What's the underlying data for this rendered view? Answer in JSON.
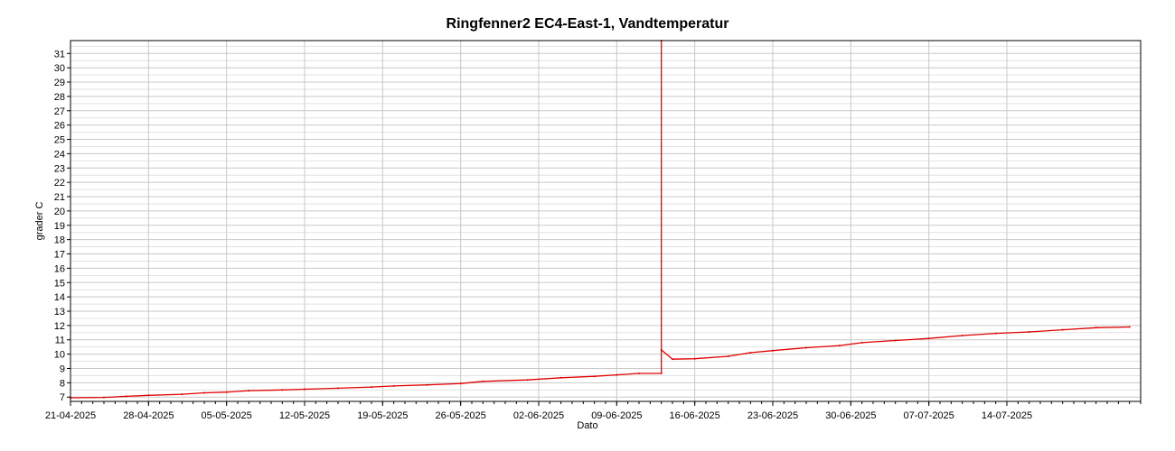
{
  "chart_data": {
    "type": "line",
    "title": "Ringfenner2 EC4-East-1, Vandtemperatur",
    "xlabel": "Dato",
    "ylabel": "grader C",
    "x_ticks": [
      "21-04-2025",
      "28-04-2025",
      "05-05-2025",
      "12-05-2025",
      "19-05-2025",
      "26-05-2025",
      "02-06-2025",
      "09-06-2025",
      "16-06-2025",
      "23-06-2025",
      "30-06-2025",
      "07-07-2025",
      "14-07-2025"
    ],
    "y_ticks": [
      7,
      8,
      9,
      10,
      11,
      12,
      13,
      14,
      15,
      16,
      17,
      18,
      19,
      20,
      21,
      22,
      23,
      24,
      25,
      26,
      27,
      28,
      29,
      30,
      31
    ],
    "xlim": [
      "2025-04-21",
      "2025-07-26"
    ],
    "ylim": [
      6.7,
      31.9
    ],
    "grid": true,
    "line_color": "#e00000",
    "series": [
      {
        "points": [
          [
            "2025-04-21",
            6.95
          ],
          [
            "2025-04-24",
            6.98
          ],
          [
            "2025-04-26",
            7.05
          ],
          [
            "2025-04-28",
            7.12
          ],
          [
            "2025-05-01",
            7.2
          ],
          [
            "2025-05-03",
            7.3
          ],
          [
            "2025-05-05",
            7.35
          ],
          [
            "2025-05-07",
            7.45
          ],
          [
            "2025-05-10",
            7.5
          ],
          [
            "2025-05-12",
            7.55
          ],
          [
            "2025-05-15",
            7.62
          ],
          [
            "2025-05-18",
            7.7
          ],
          [
            "2025-05-20",
            7.78
          ],
          [
            "2025-05-23",
            7.85
          ],
          [
            "2025-05-26",
            7.95
          ],
          [
            "2025-05-28",
            8.1
          ],
          [
            "2025-06-01",
            8.2
          ],
          [
            "2025-06-04",
            8.35
          ],
          [
            "2025-06-07",
            8.45
          ],
          [
            "2025-06-09",
            8.55
          ],
          [
            "2025-06-11",
            8.65
          ],
          [
            "2025-06-13",
            8.65
          ],
          [
            "2025-06-13",
            31.9
          ],
          [
            "2025-06-13",
            10.3
          ],
          [
            "2025-06-14",
            9.65
          ],
          [
            "2025-06-16",
            9.68
          ],
          [
            "2025-06-19",
            9.85
          ],
          [
            "2025-06-21",
            10.1
          ],
          [
            "2025-06-23",
            10.25
          ],
          [
            "2025-06-26",
            10.45
          ],
          [
            "2025-06-29",
            10.6
          ],
          [
            "2025-07-01",
            10.8
          ],
          [
            "2025-07-04",
            10.95
          ],
          [
            "2025-07-07",
            11.1
          ],
          [
            "2025-07-10",
            11.3
          ],
          [
            "2025-07-13",
            11.45
          ],
          [
            "2025-07-16",
            11.55
          ],
          [
            "2025-07-19",
            11.7
          ],
          [
            "2025-07-22",
            11.85
          ],
          [
            "2025-07-25",
            11.9
          ]
        ]
      }
    ]
  }
}
